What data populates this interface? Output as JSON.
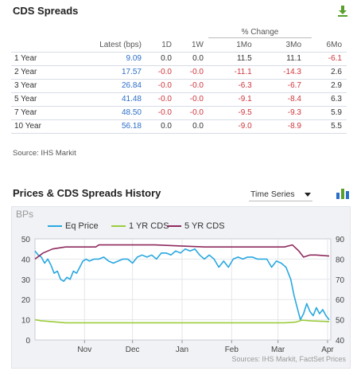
{
  "cds": {
    "title": "CDS Spreads",
    "headers": {
      "latest": "Latest (bps)",
      "pct_change": "% Change",
      "d1": "1D",
      "w1": "1W",
      "m1": "1Mo",
      "m3": "3Mo",
      "m6": "6Mo"
    },
    "rows": [
      {
        "term": "1 Year",
        "latest": "9.09",
        "d1": "0.0",
        "w1": "0.0",
        "m1": "11.5",
        "m3": "11.1",
        "m6": "-6.1"
      },
      {
        "term": "2 Year",
        "latest": "17.57",
        "d1": "-0.0",
        "w1": "-0.0",
        "m1": "-11.1",
        "m3": "-14.3",
        "m6": "2.6"
      },
      {
        "term": "3 Year",
        "latest": "26.84",
        "d1": "-0.0",
        "w1": "-0.0",
        "m1": "-6.3",
        "m3": "-6.7",
        "m6": "2.9"
      },
      {
        "term": "5 Year",
        "latest": "41.48",
        "d1": "-0.0",
        "w1": "-0.0",
        "m1": "-9.1",
        "m3": "-8.4",
        "m6": "6.3"
      },
      {
        "term": "7 Year",
        "latest": "48.50",
        "d1": "-0.0",
        "w1": "-0.0",
        "m1": "-9.5",
        "m3": "-9.3",
        "m6": "5.9"
      },
      {
        "term": "10 Year",
        "latest": "56.18",
        "d1": "0.0",
        "w1": "0.0",
        "m1": "-9.0",
        "m3": "-8.9",
        "m6": "5.5"
      }
    ],
    "source": "Source: IHS Markit",
    "download_icon": "download-icon"
  },
  "history": {
    "title": "Prices & CDS Spreads History",
    "view_select": "Time Series",
    "chart_icon": "bar-chart-icon"
  },
  "chart_data": {
    "type": "line",
    "ylabel": "BPs",
    "left_axis": {
      "ticks": [
        "50",
        "40",
        "30",
        "20",
        "10",
        "0"
      ],
      "ylim": [
        0,
        50
      ]
    },
    "right_axis": {
      "ticks": [
        "90",
        "80",
        "70",
        "60",
        "50",
        "40"
      ],
      "ylim": [
        40,
        90
      ]
    },
    "x_ticks": [
      "Nov",
      "Dec",
      "Jan",
      "Feb",
      "Mar",
      "Apr"
    ],
    "x_range": [
      "2019-10-01",
      "2020-04-03"
    ],
    "legend_position": "top",
    "source": "Sources: IHS Markit, FactSet Prices",
    "grid": true,
    "series": [
      {
        "name": "Eq Price",
        "color": "#29a8e0",
        "axis": "right",
        "points": [
          [
            "2019-10-01",
            84
          ],
          [
            "2019-10-03",
            82
          ],
          [
            "2019-10-05",
            81
          ],
          [
            "2019-10-07",
            78
          ],
          [
            "2019-10-09",
            80
          ],
          [
            "2019-10-11",
            77
          ],
          [
            "2019-10-13",
            73
          ],
          [
            "2019-10-15",
            74
          ],
          [
            "2019-10-17",
            70
          ],
          [
            "2019-10-19",
            69
          ],
          [
            "2019-10-21",
            71
          ],
          [
            "2019-10-23",
            70
          ],
          [
            "2019-10-25",
            74
          ],
          [
            "2019-10-27",
            73
          ],
          [
            "2019-10-29",
            76
          ],
          [
            "2019-10-31",
            79
          ],
          [
            "2019-11-02",
            80
          ],
          [
            "2019-11-04",
            79
          ],
          [
            "2019-11-07",
            80
          ],
          [
            "2019-11-10",
            80
          ],
          [
            "2019-11-13",
            81
          ],
          [
            "2019-11-16",
            79
          ],
          [
            "2019-11-19",
            78
          ],
          [
            "2019-11-22",
            79
          ],
          [
            "2019-11-25",
            80
          ],
          [
            "2019-11-28",
            80
          ],
          [
            "2019-12-01",
            78
          ],
          [
            "2019-12-04",
            81
          ],
          [
            "2019-12-07",
            82
          ],
          [
            "2019-12-10",
            81
          ],
          [
            "2019-12-13",
            82
          ],
          [
            "2019-12-16",
            80
          ],
          [
            "2019-12-19",
            83
          ],
          [
            "2019-12-22",
            83
          ],
          [
            "2019-12-25",
            82
          ],
          [
            "2019-12-28",
            84
          ],
          [
            "2019-12-31",
            83
          ],
          [
            "2020-01-03",
            85
          ],
          [
            "2020-01-06",
            84
          ],
          [
            "2020-01-09",
            85
          ],
          [
            "2020-01-12",
            82
          ],
          [
            "2020-01-15",
            80
          ],
          [
            "2020-01-18",
            82
          ],
          [
            "2020-01-21",
            80
          ],
          [
            "2020-01-24",
            76
          ],
          [
            "2020-01-27",
            79
          ],
          [
            "2020-01-30",
            76
          ],
          [
            "2020-02-02",
            80
          ],
          [
            "2020-02-05",
            81
          ],
          [
            "2020-02-08",
            80
          ],
          [
            "2020-02-11",
            81
          ],
          [
            "2020-02-14",
            81
          ],
          [
            "2020-02-17",
            80
          ],
          [
            "2020-02-20",
            80
          ],
          [
            "2020-02-23",
            80
          ],
          [
            "2020-02-26",
            76
          ],
          [
            "2020-02-29",
            79
          ],
          [
            "2020-03-03",
            78
          ],
          [
            "2020-03-06",
            76
          ],
          [
            "2020-03-09",
            70
          ],
          [
            "2020-03-11",
            62
          ],
          [
            "2020-03-13",
            56
          ],
          [
            "2020-03-15",
            50
          ],
          [
            "2020-03-17",
            53
          ],
          [
            "2020-03-19",
            58
          ],
          [
            "2020-03-21",
            54
          ],
          [
            "2020-03-23",
            52
          ],
          [
            "2020-03-25",
            56
          ],
          [
            "2020-03-27",
            53
          ],
          [
            "2020-03-29",
            55
          ],
          [
            "2020-03-31",
            52
          ],
          [
            "2020-04-02",
            50
          ]
        ]
      },
      {
        "name": "1 YR CDS",
        "color": "#9ccc3c",
        "axis": "left",
        "points": [
          [
            "2019-10-01",
            10
          ],
          [
            "2019-10-05",
            9.5
          ],
          [
            "2019-10-12",
            9
          ],
          [
            "2019-10-20",
            8.5
          ],
          [
            "2019-11-15",
            8.5
          ],
          [
            "2019-12-15",
            8.5
          ],
          [
            "2020-01-15",
            8.5
          ],
          [
            "2020-02-15",
            8.5
          ],
          [
            "2020-03-05",
            8.5
          ],
          [
            "2020-03-12",
            8.8
          ],
          [
            "2020-03-16",
            9.8
          ],
          [
            "2020-03-22",
            9.4
          ],
          [
            "2020-04-02",
            9.1
          ]
        ]
      },
      {
        "name": "5 YR CDS",
        "color": "#8e2a5e",
        "axis": "left",
        "points": [
          [
            "2019-10-01",
            40
          ],
          [
            "2019-10-06",
            43
          ],
          [
            "2019-10-12",
            45
          ],
          [
            "2019-10-20",
            46
          ],
          [
            "2019-10-28",
            46
          ],
          [
            "2019-11-08",
            46
          ],
          [
            "2019-11-10",
            47
          ],
          [
            "2019-12-15",
            47
          ],
          [
            "2019-12-31",
            46.5
          ],
          [
            "2020-01-15",
            46
          ],
          [
            "2020-02-15",
            46
          ],
          [
            "2020-03-05",
            46
          ],
          [
            "2020-03-10",
            47
          ],
          [
            "2020-03-14",
            44
          ],
          [
            "2020-03-17",
            41
          ],
          [
            "2020-03-21",
            42
          ],
          [
            "2020-03-25",
            42
          ],
          [
            "2020-04-02",
            41.5
          ]
        ]
      }
    ]
  }
}
